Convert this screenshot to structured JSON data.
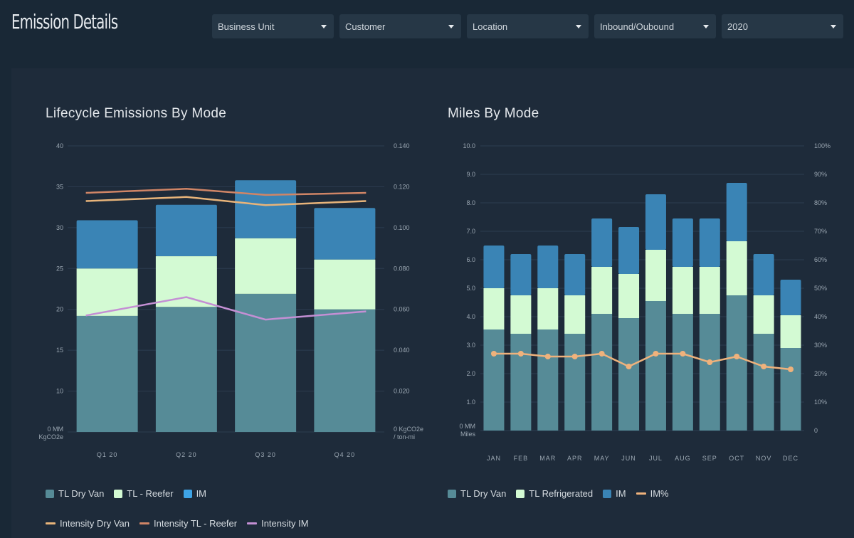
{
  "header": {
    "title": "Emission Details",
    "filters": [
      {
        "label": "Business Unit"
      },
      {
        "label": "Customer"
      },
      {
        "label": "Location"
      },
      {
        "label": "Inbound/Oubound"
      },
      {
        "label": "2020"
      }
    ]
  },
  "colors": {
    "background": "#192836",
    "panel": "#1e2b3a",
    "dry_van": "#568b97",
    "reefer": "#d3fad3",
    "im": "#3a84b5",
    "im_legend_left": "#3ea4e6",
    "intensity_dry_van": "#e8b47a",
    "intensity_reefer": "#d08566",
    "intensity_im": "#c48fd4",
    "im_pct": "#efb27c",
    "gridline": "#2c3d50",
    "axis_text": "#9aa6b1"
  },
  "chart_data": [
    {
      "id": "lifecycle",
      "type": "bar",
      "stacked": true,
      "title": "Lifecycle Emissions By Mode",
      "categories": [
        "Q1  20",
        "Q2  20",
        "Q3  20",
        "Q4  20"
      ],
      "series": [
        {
          "name": "TL Dry Van",
          "kind": "bar",
          "values": [
            19.2,
            20.3,
            21.9,
            20.0
          ]
        },
        {
          "name": "TL - Reefer",
          "kind": "bar",
          "values": [
            25.0,
            26.5,
            28.7,
            26.1
          ]
        },
        {
          "name": "IM",
          "kind": "bar",
          "values": [
            30.9,
            32.8,
            35.8,
            32.4
          ]
        },
        {
          "name": "Intensity  Dry Van",
          "kind": "line",
          "axis": "right",
          "values": [
            0.113,
            0.115,
            0.111,
            0.113
          ]
        },
        {
          "name": "Intensity TL - Reefer",
          "kind": "line",
          "axis": "right",
          "values": [
            0.117,
            0.119,
            0.116,
            0.117
          ]
        },
        {
          "name": "Intensity IM",
          "kind": "line",
          "axis": "right",
          "values": [
            0.057,
            0.066,
            0.055,
            0.059
          ]
        }
      ],
      "values_note": "bar values are cumulative stack tops",
      "y_left": {
        "ticks": [
          "40",
          "35",
          "30",
          "25",
          "20",
          "15",
          "10"
        ],
        "tick_values": [
          40,
          35,
          30,
          25,
          20,
          15,
          10
        ],
        "base_label": [
          "0 MM",
          "KgCO2e"
        ],
        "range": [
          5,
          40
        ]
      },
      "y_right": {
        "ticks": [
          "0.140",
          "0.120",
          "0.100",
          "0.080",
          "0.060",
          "0.040",
          "0.020"
        ],
        "tick_values": [
          0.14,
          0.12,
          0.1,
          0.08,
          0.06,
          0.04,
          0.02
        ],
        "base_label": [
          "0 KgCO2e",
          "/ ton-mi"
        ],
        "range": [
          0.0,
          0.14
        ]
      },
      "grid": true,
      "legend_rows": [
        [
          {
            "label": "TL Dry Van",
            "type": "box",
            "color_key": "dry_van"
          },
          {
            "label": "TL - Reefer",
            "type": "box",
            "color_key": "reefer"
          },
          {
            "label": "IM",
            "type": "box",
            "color_key": "im_legend_left"
          }
        ],
        [
          {
            "label": "Intensity  Dry Van",
            "type": "line",
            "color_key": "intensity_dry_van"
          },
          {
            "label": "Intensity TL - Reefer",
            "type": "line",
            "color_key": "intensity_reefer"
          },
          {
            "label": "Intensity IM",
            "type": "line",
            "color_key": "intensity_im"
          }
        ]
      ],
      "legend_position": "bottom-left"
    },
    {
      "id": "miles",
      "type": "bar",
      "stacked": true,
      "title": "Miles By Mode",
      "categories": [
        "JAN",
        "FEB",
        "MAR",
        "APR",
        "MAY",
        "JUN",
        "JUL",
        "AUG",
        "SEP",
        "OCT",
        "NOV",
        "DEC"
      ],
      "series": [
        {
          "name": "TL Dry Van",
          "kind": "bar",
          "values": [
            3.55,
            3.4,
            3.55,
            3.4,
            4.1,
            3.95,
            4.55,
            4.1,
            4.1,
            4.75,
            3.4,
            2.9
          ]
        },
        {
          "name": "TL Refrigerated",
          "kind": "bar",
          "values": [
            5.0,
            4.75,
            5.0,
            4.75,
            5.75,
            5.5,
            6.35,
            5.75,
            5.75,
            6.65,
            4.75,
            4.05
          ]
        },
        {
          "name": "IM",
          "kind": "bar",
          "values": [
            6.5,
            6.2,
            6.5,
            6.2,
            7.45,
            7.15,
            8.3,
            7.45,
            7.45,
            8.7,
            6.2,
            5.3
          ]
        },
        {
          "name": "IM%",
          "kind": "line",
          "axis": "right",
          "values": [
            27,
            27,
            26,
            26,
            27,
            22.5,
            27,
            27,
            24,
            26,
            22.5,
            21.5
          ]
        }
      ],
      "values_note": "bar values are cumulative stack tops",
      "y_left": {
        "ticks": [
          "10.0",
          "9.0",
          "8.0",
          "7.0",
          "6.0",
          "5.0",
          "4.0",
          "3.0",
          "2.0",
          "1.0"
        ],
        "tick_values": [
          10,
          9,
          8,
          7,
          6,
          5,
          4,
          3,
          2,
          1
        ],
        "base_label": [
          "0 MM",
          "Miles"
        ],
        "range": [
          0,
          10
        ]
      },
      "y_right": {
        "ticks": [
          "100%",
          "90%",
          "80%",
          "70%",
          "60%",
          "50%",
          "40%",
          "30%",
          "20%",
          "10%",
          "0"
        ],
        "tick_values": [
          100,
          90,
          80,
          70,
          60,
          50,
          40,
          30,
          20,
          10,
          0
        ],
        "range": [
          0,
          100
        ]
      },
      "grid": true,
      "legend_rows": [
        [
          {
            "label": "TL Dry Van",
            "type": "box",
            "color_key": "dry_van"
          },
          {
            "label": "TL Refrigerated",
            "type": "box",
            "color_key": "reefer"
          },
          {
            "label": "IM",
            "type": "box",
            "color_key": "im"
          },
          {
            "label": "IM%",
            "type": "line",
            "color_key": "im_pct"
          }
        ]
      ],
      "legend_position": "bottom-left"
    }
  ]
}
